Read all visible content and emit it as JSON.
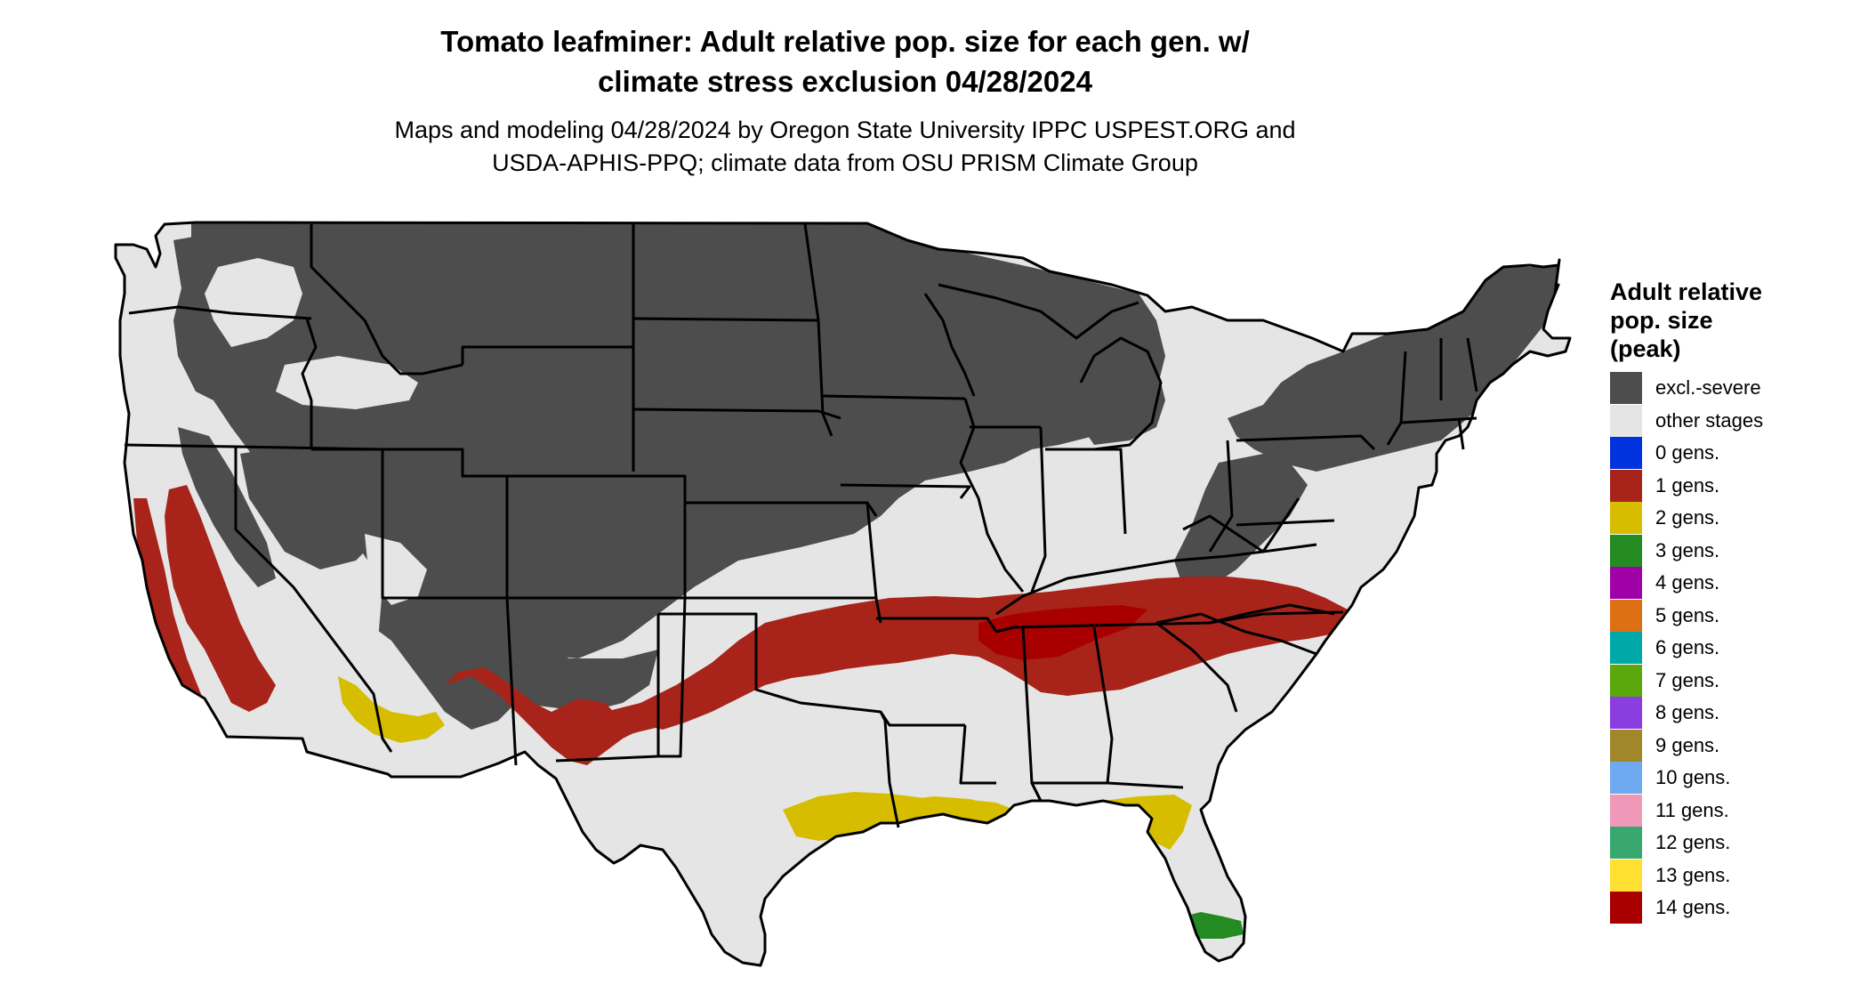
{
  "title": {
    "line1": "Tomato leafminer: Adult relative pop. size for each gen. w/",
    "line2": "climate stress exclusion 04/28/2024"
  },
  "subtitle": {
    "line1": "Maps and modeling 04/28/2024 by Oregon State University IPPC USPEST.ORG and",
    "line2": "USDA-APHIS-PPQ; climate data from OSU PRISM Climate Group"
  },
  "legend": {
    "title_lines": [
      "Adult relative",
      "pop. size",
      "(peak)"
    ],
    "items": [
      {
        "label": "excl.-severe",
        "color": "#4d4d4d"
      },
      {
        "label": "other stages",
        "color": "#e5e5e5"
      },
      {
        "label": "0 gens.",
        "color": "#0033dd"
      },
      {
        "label": "1 gens.",
        "color": "#a8241a"
      },
      {
        "label": "2 gens.",
        "color": "#d6bd00"
      },
      {
        "label": "3 gens.",
        "color": "#238b22"
      },
      {
        "label": "4 gens.",
        "color": "#a000a8"
      },
      {
        "label": "5 gens.",
        "color": "#dd7012"
      },
      {
        "label": "6 gens.",
        "color": "#00a8a8"
      },
      {
        "label": "7 gens.",
        "color": "#5aa80c"
      },
      {
        "label": "8 gens.",
        "color": "#8a3de0"
      },
      {
        "label": "9 gens.",
        "color": "#a0882a"
      },
      {
        "label": "10 gens.",
        "color": "#6faaf0"
      },
      {
        "label": "11 gens.",
        "color": "#f098b8"
      },
      {
        "label": "12 gens.",
        "color": "#38a870"
      },
      {
        "label": "13 gens.",
        "color": "#ffe033"
      },
      {
        "label": "14 gens.",
        "color": "#a80000"
      }
    ]
  },
  "map": {
    "region": "Conterminous United States",
    "excluded_color": "#4d4d4d",
    "other_color": "#e5e5e5",
    "state_border_color": "#000000"
  }
}
